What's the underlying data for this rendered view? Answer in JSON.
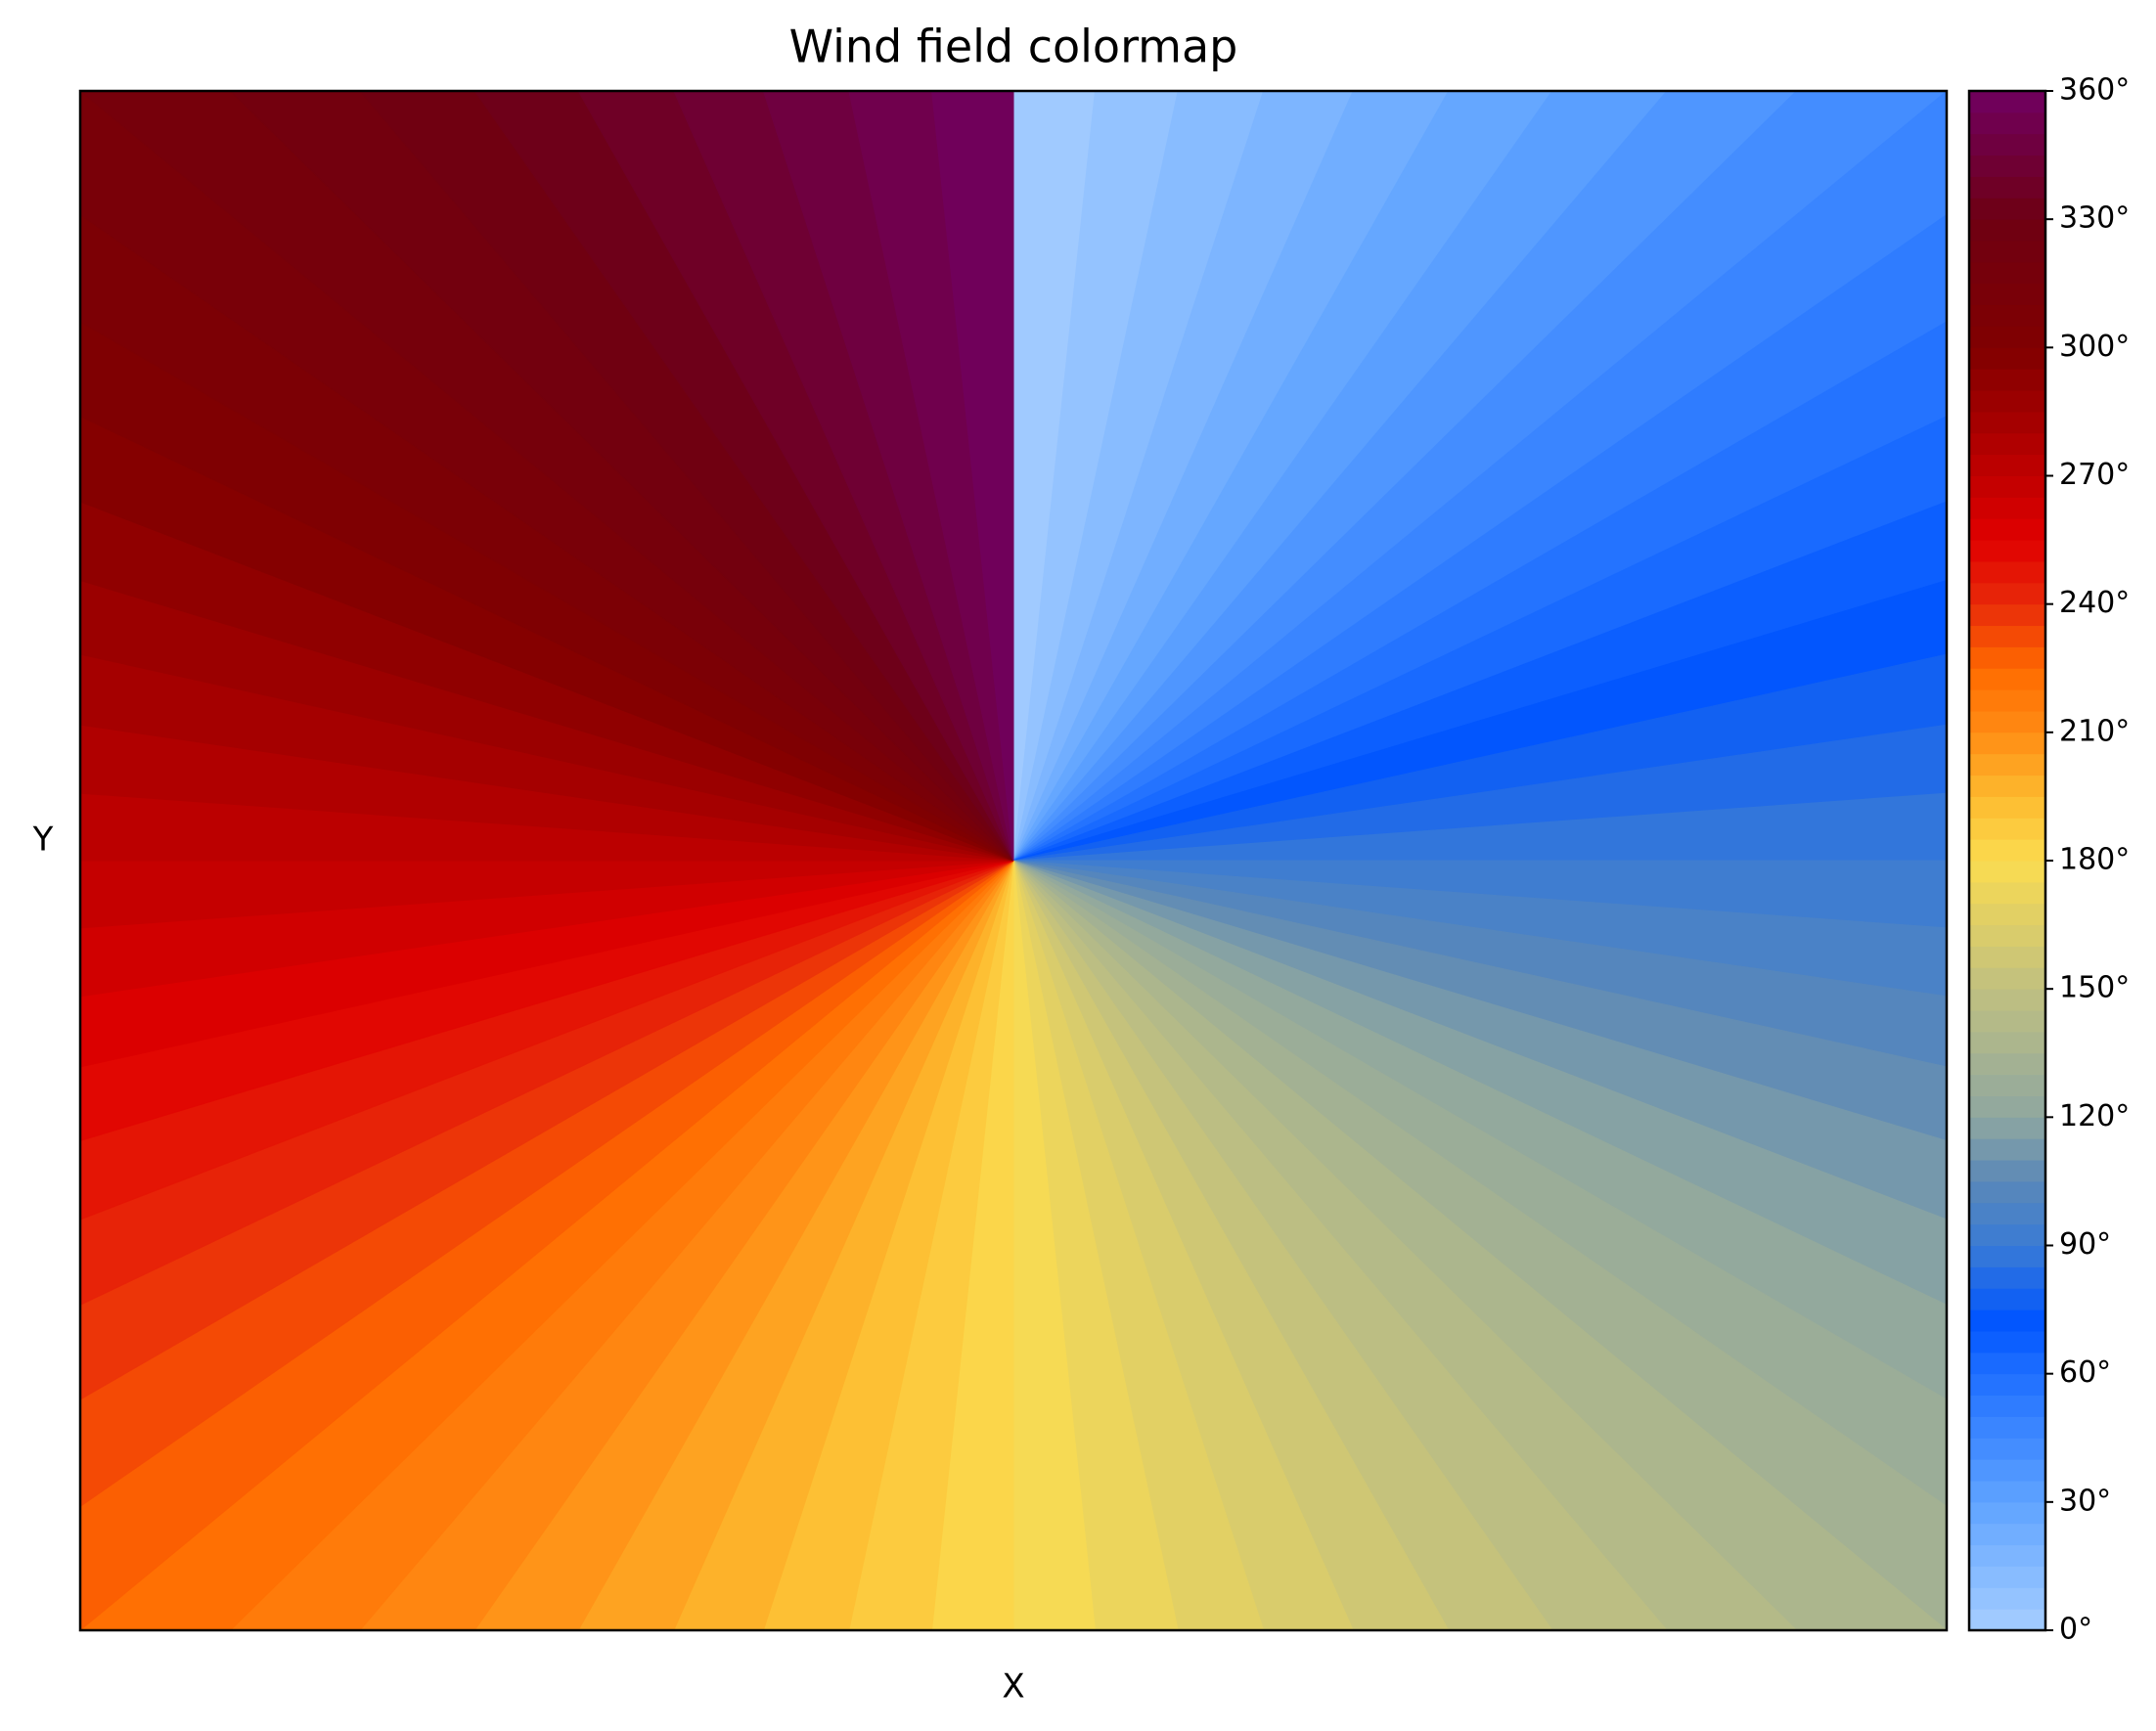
{
  "chart_data": {
    "type": "contourf",
    "title": "Wind field colormap",
    "x_label": "X",
    "y_label": "Y",
    "levels": [
      0,
      5,
      10,
      15,
      20,
      25,
      30,
      35,
      40,
      45,
      50,
      55,
      60,
      65,
      70,
      75,
      80,
      85,
      90,
      95,
      100,
      105,
      110,
      115,
      120,
      125,
      130,
      135,
      140,
      145,
      150,
      155,
      160,
      165,
      170,
      175,
      180,
      185,
      190,
      195,
      200,
      205,
      210,
      215,
      220,
      225,
      230,
      235,
      240,
      245,
      250,
      255,
      260,
      265,
      270,
      275,
      280,
      285,
      290,
      295,
      300,
      305,
      310,
      315,
      320,
      325,
      330,
      335,
      340,
      345,
      350,
      355,
      360
    ],
    "colormap": [
      {
        "value": 0,
        "color": "#a6cdff"
      },
      {
        "value": 30,
        "color": "#5fa3ff"
      },
      {
        "value": 60,
        "color": "#1f6fff"
      },
      {
        "value": 72,
        "color": "#0055ff"
      },
      {
        "value": 90,
        "color": "#3a7bd5"
      },
      {
        "value": 105,
        "color": "#5a88b8"
      },
      {
        "value": 120,
        "color": "#8fa7a0"
      },
      {
        "value": 150,
        "color": "#c0c080"
      },
      {
        "value": 180,
        "color": "#fbdc50"
      },
      {
        "value": 195,
        "color": "#fdba2e"
      },
      {
        "value": 210,
        "color": "#ff8c14"
      },
      {
        "value": 225,
        "color": "#ff6a00"
      },
      {
        "value": 240,
        "color": "#e82a0a"
      },
      {
        "value": 255,
        "color": "#e00000"
      },
      {
        "value": 270,
        "color": "#c00000"
      },
      {
        "value": 300,
        "color": "#800000"
      },
      {
        "value": 330,
        "color": "#6e0012"
      },
      {
        "value": 360,
        "color": "#700060"
      }
    ],
    "colorbar": {
      "lim": [
        0,
        360
      ],
      "ticks": [
        {
          "value": 0,
          "label": "0°"
        },
        {
          "value": 30,
          "label": "30°"
        },
        {
          "value": 60,
          "label": "60°"
        },
        {
          "value": 90,
          "label": "90°"
        },
        {
          "value": 120,
          "label": "120°"
        },
        {
          "value": 150,
          "label": "150°"
        },
        {
          "value": 180,
          "label": "180°"
        },
        {
          "value": 210,
          "label": "210°"
        },
        {
          "value": 240,
          "label": "240°"
        },
        {
          "value": 270,
          "label": "270°"
        },
        {
          "value": 300,
          "label": "300°"
        },
        {
          "value": 330,
          "label": "330°"
        },
        {
          "value": 360,
          "label": "360°"
        }
      ]
    }
  }
}
